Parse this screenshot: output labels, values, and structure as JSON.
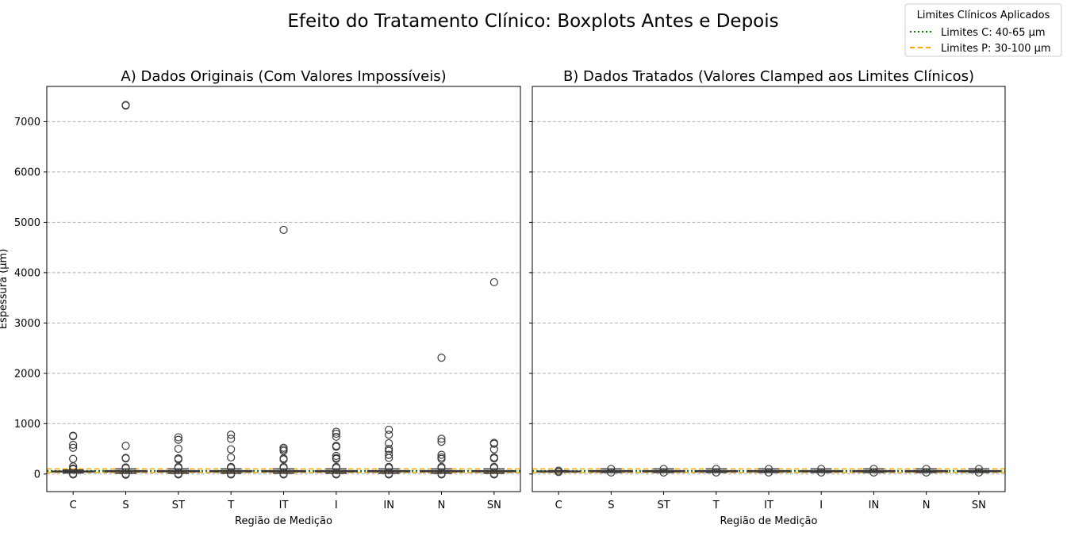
{
  "figure": {
    "suptitle": "Efeito do Tratamento Clínico: Boxplots Antes e Depois",
    "legend": {
      "title": "Limites Clínicos Aplicados",
      "entries": [
        {
          "label": "Limites C: 40-65 µm",
          "color": "#008000",
          "style": "dotted"
        },
        {
          "label": "Limites P: 30-100 µm",
          "color": "#FFA500",
          "style": "dashed"
        }
      ]
    }
  },
  "chart_data": [
    {
      "type": "box",
      "title": "A) Dados Originais (Com Valores Impossíveis)",
      "xlabel": "Região de Medição",
      "ylabel": "Espessura (µm)",
      "categories": [
        "C",
        "S",
        "ST",
        "T",
        "IT",
        "I",
        "IN",
        "N",
        "SN"
      ],
      "ylim": [
        -350,
        7700
      ],
      "yticks": [
        0,
        1000,
        2000,
        3000,
        4000,
        5000,
        6000,
        7000
      ],
      "grid": "y",
      "reference_lines": [
        {
          "value": 40,
          "color": "#008000",
          "style": "dotted"
        },
        {
          "value": 65,
          "color": "#008000",
          "style": "dotted"
        },
        {
          "value": 30,
          "color": "#FFA500",
          "style": "dashed"
        },
        {
          "value": 100,
          "color": "#FFA500",
          "style": "dashed"
        }
      ],
      "boxes": [
        {
          "category": "C",
          "whisker_low": 20,
          "q1": 42,
          "median": 50,
          "q3": 58,
          "whisker_high": 80,
          "outliers": [
            760,
            750,
            580,
            520,
            300,
            150,
            110,
            95,
            -10,
            5
          ]
        },
        {
          "category": "S",
          "whisker_low": 15,
          "q1": 45,
          "median": 55,
          "q3": 65,
          "whisker_high": 100,
          "outliers": [
            7330,
            7320,
            560,
            320,
            310,
            130,
            115,
            -15,
            0
          ]
        },
        {
          "category": "ST",
          "whisker_low": 15,
          "q1": 45,
          "median": 55,
          "q3": 65,
          "whisker_high": 100,
          "outliers": [
            730,
            680,
            500,
            310,
            290,
            140,
            120,
            -10,
            5
          ]
        },
        {
          "category": "T",
          "whisker_low": 15,
          "q1": 45,
          "median": 55,
          "q3": 65,
          "whisker_high": 100,
          "outliers": [
            780,
            700,
            490,
            330,
            140,
            120,
            -10,
            5
          ]
        },
        {
          "category": "IT",
          "whisker_low": 15,
          "q1": 45,
          "median": 55,
          "q3": 65,
          "whisker_high": 100,
          "outliers": [
            4850,
            520,
            490,
            460,
            310,
            290,
            140,
            120,
            -10,
            5
          ]
        },
        {
          "category": "I",
          "whisker_low": 15,
          "q1": 45,
          "median": 55,
          "q3": 65,
          "whisker_high": 100,
          "outliers": [
            840,
            800,
            740,
            560,
            540,
            360,
            320,
            300,
            140,
            120,
            -10,
            5
          ]
        },
        {
          "category": "IN",
          "whisker_low": 15,
          "q1": 45,
          "median": 55,
          "q3": 65,
          "whisker_high": 100,
          "outliers": [
            880,
            780,
            610,
            500,
            460,
            380,
            320,
            140,
            120,
            -10,
            5
          ]
        },
        {
          "category": "N",
          "whisker_low": 15,
          "q1": 45,
          "median": 55,
          "q3": 65,
          "whisker_high": 100,
          "outliers": [
            2310,
            700,
            640,
            380,
            330,
            300,
            140,
            120,
            -10,
            5
          ]
        },
        {
          "category": "SN",
          "whisker_low": 15,
          "q1": 45,
          "median": 55,
          "q3": 65,
          "whisker_high": 100,
          "outliers": [
            3810,
            620,
            600,
            490,
            330,
            310,
            140,
            120,
            -10,
            5
          ]
        }
      ]
    },
    {
      "type": "box",
      "title": "B) Dados Tratados (Valores Clamped aos Limites Clínicos)",
      "xlabel": "Região de Medição",
      "ylabel": "",
      "categories": [
        "C",
        "S",
        "ST",
        "T",
        "IT",
        "I",
        "IN",
        "N",
        "SN"
      ],
      "ylim": [
        -350,
        7700
      ],
      "yticks": [
        0,
        1000,
        2000,
        3000,
        4000,
        5000,
        6000,
        7000
      ],
      "grid": "y",
      "reference_lines": [
        {
          "value": 40,
          "color": "#008000",
          "style": "dotted"
        },
        {
          "value": 65,
          "color": "#008000",
          "style": "dotted"
        },
        {
          "value": 30,
          "color": "#FFA500",
          "style": "dashed"
        },
        {
          "value": 100,
          "color": "#FFA500",
          "style": "dashed"
        }
      ],
      "boxes": [
        {
          "category": "C",
          "whisker_low": 40,
          "q1": 44,
          "median": 50,
          "q3": 58,
          "whisker_high": 65,
          "outliers": [
            40,
            65
          ]
        },
        {
          "category": "S",
          "whisker_low": 30,
          "q1": 45,
          "median": 55,
          "q3": 65,
          "whisker_high": 100,
          "outliers": [
            30,
            100
          ]
        },
        {
          "category": "ST",
          "whisker_low": 30,
          "q1": 45,
          "median": 55,
          "q3": 65,
          "whisker_high": 100,
          "outliers": [
            30,
            100
          ]
        },
        {
          "category": "T",
          "whisker_low": 30,
          "q1": 45,
          "median": 55,
          "q3": 65,
          "whisker_high": 100,
          "outliers": [
            30,
            100
          ]
        },
        {
          "category": "IT",
          "whisker_low": 30,
          "q1": 45,
          "median": 55,
          "q3": 65,
          "whisker_high": 100,
          "outliers": [
            30,
            100
          ]
        },
        {
          "category": "I",
          "whisker_low": 30,
          "q1": 45,
          "median": 55,
          "q3": 65,
          "whisker_high": 100,
          "outliers": [
            30,
            100
          ]
        },
        {
          "category": "IN",
          "whisker_low": 30,
          "q1": 45,
          "median": 55,
          "q3": 65,
          "whisker_high": 100,
          "outliers": [
            30,
            100
          ]
        },
        {
          "category": "N",
          "whisker_low": 30,
          "q1": 45,
          "median": 55,
          "q3": 65,
          "whisker_high": 100,
          "outliers": [
            30,
            100
          ]
        },
        {
          "category": "SN",
          "whisker_low": 30,
          "q1": 45,
          "median": 55,
          "q3": 65,
          "whisker_high": 100,
          "outliers": [
            30,
            100
          ]
        }
      ]
    }
  ]
}
